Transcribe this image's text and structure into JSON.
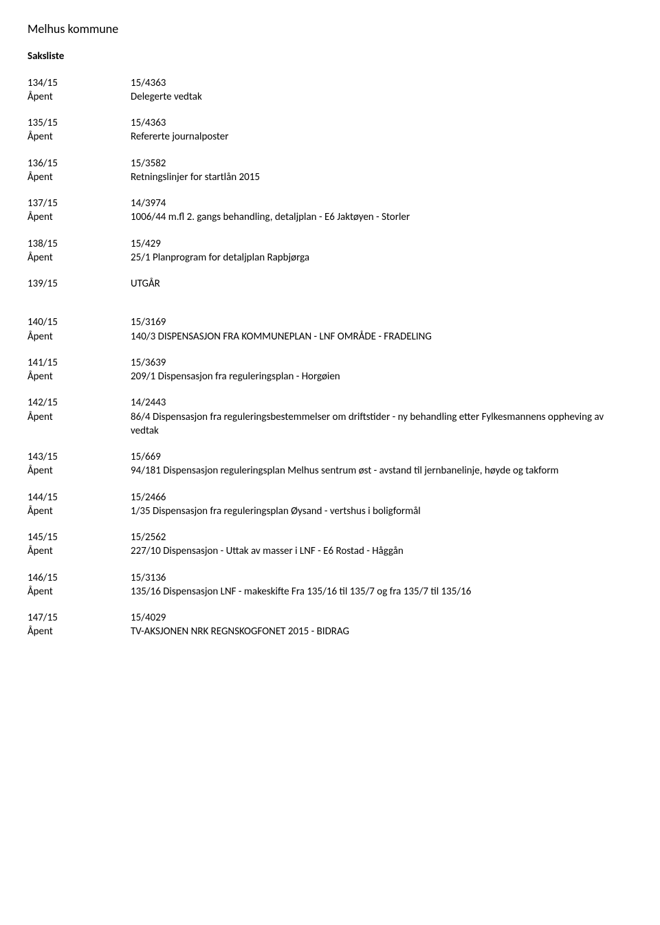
{
  "header": {
    "title": "Melhus kommune",
    "sectionTitle": "Saksliste"
  },
  "entries": [
    {
      "caseNum": "134/15",
      "status": "Åpent",
      "ref": "15/4363",
      "desc": "Delegerte vedtak"
    },
    {
      "caseNum": "135/15",
      "status": "Åpent",
      "ref": "15/4363",
      "desc": "Refererte journalposter"
    },
    {
      "caseNum": "136/15",
      "status": "Åpent",
      "ref": "15/3582",
      "desc": "Retningslinjer for startlån 2015"
    },
    {
      "caseNum": "137/15",
      "status": "Åpent",
      "ref": "14/3974",
      "desc": "1006/44 m.fl  2. gangs behandling, detaljplan - E6 Jaktøyen - Storler"
    },
    {
      "caseNum": "138/15",
      "status": "Åpent",
      "ref": "15/429",
      "desc": "25/1 Planprogram for detaljplan Rapbjørga"
    }
  ],
  "utgar": {
    "caseNum": "139/15",
    "ref": "UTGÅR"
  },
  "entries2": [
    {
      "caseNum": "140/15",
      "status": "Åpent",
      "ref": "15/3169",
      "desc": "140/3 DISPENSASJON FRA KOMMUNEPLAN - LNF OMRÅDE - FRADELING"
    },
    {
      "caseNum": "141/15",
      "status": "Åpent",
      "ref": "15/3639",
      "desc": "209/1 Dispensasjon fra reguleringsplan - Horgøien"
    },
    {
      "caseNum": "142/15",
      "status": "Åpent",
      "ref": "14/2443",
      "desc": "86/4 Dispensasjon fra reguleringsbestemmelser om driftstider - ny behandling etter Fylkesmannens oppheving av vedtak"
    },
    {
      "caseNum": "143/15",
      "status": "Åpent",
      "ref": "15/669",
      "desc": "94/181 Dispensasjon reguleringsplan Melhus sentrum øst - avstand til jernbanelinje, høyde og takform"
    },
    {
      "caseNum": "144/15",
      "status": "Åpent",
      "ref": "15/2466",
      "desc": "1/35 Dispensasjon fra reguleringsplan Øysand - vertshus i boligformål"
    },
    {
      "caseNum": "145/15",
      "status": "Åpent",
      "ref": "15/2562",
      "desc": "227/10 Dispensasjon - Uttak av masser i LNF - E6 Rostad - Håggån"
    },
    {
      "caseNum": "146/15",
      "status": "Åpent",
      "ref": "15/3136",
      "desc": "135/16 Dispensasjon LNF - makeskifte Fra 135/16 til 135/7 og fra 135/7 til 135/16"
    },
    {
      "caseNum": "147/15",
      "status": "Åpent",
      "ref": "15/4029",
      "desc": "TV-AKSJONEN NRK REGNSKOGFONET 2015 - BIDRAG"
    }
  ]
}
